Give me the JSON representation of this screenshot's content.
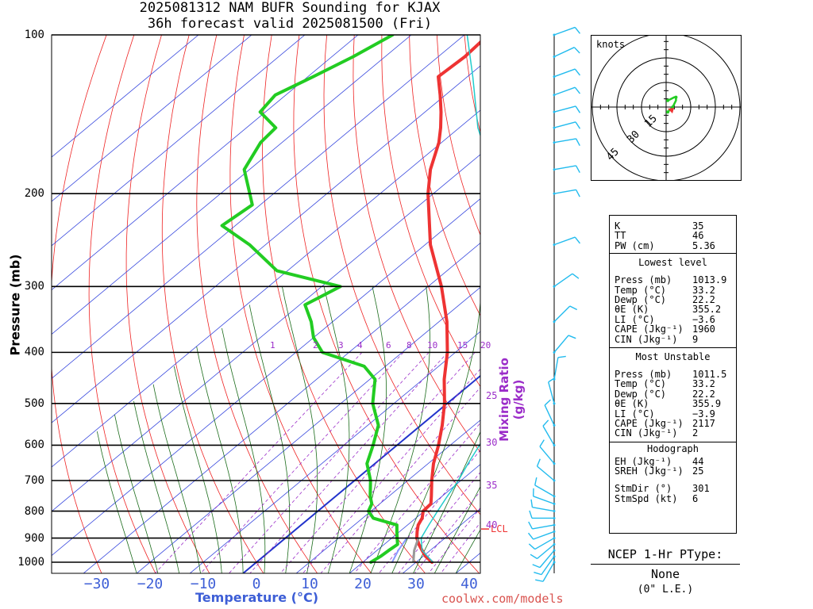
{
  "title": {
    "line1": "2025081312 NAM BUFR Sounding for KJAX",
    "line2": "36h forecast valid 2025081500 (Fri)"
  },
  "axes": {
    "ylabel": "Pressure (mb)",
    "xlabel": "Temperature (°C)",
    "mixing_ratio_label": "Mixing Ratio (g/kg)",
    "pressure_ticks": [
      "100",
      "200",
      "300",
      "400",
      "500",
      "600",
      "700",
      "800",
      "900",
      "1000"
    ],
    "temperature_ticks": [
      "−30",
      "−20",
      "−10",
      "0",
      "10",
      "20",
      "30",
      "40"
    ],
    "mixing_ratio_ticks": [
      "1",
      "2",
      "3",
      "4",
      "6",
      "8",
      "10",
      "15",
      "20"
    ],
    "mixing_ratio_side": [
      "25",
      "30",
      "35",
      "40"
    ],
    "lcl_label": "LCL"
  },
  "chart_data": {
    "type": "line",
    "title": "2025081312 NAM BUFR Sounding for KJAX",
    "xlabel": "Temperature (°C)",
    "ylabel": "Pressure (mb)",
    "x_range": [
      -38,
      42
    ],
    "y_range": [
      100,
      1050
    ],
    "y_scale": "log",
    "skew": "skew-T",
    "series": [
      {
        "name": "Temperature",
        "color": "#ee3333",
        "p": [
          1000,
          975,
          950,
          925,
          900,
          875,
          850,
          825,
          800,
          775,
          750,
          700,
          650,
          600,
          550,
          500,
          450,
          400,
          350,
          300,
          250,
          200,
          180,
          160,
          150,
          140,
          130,
          120,
          110,
          100
        ],
        "t": [
          33.0,
          30.5,
          28.5,
          26.5,
          24.7,
          23.3,
          22.0,
          21.2,
          19.8,
          19.6,
          18.0,
          14.5,
          11.0,
          7.8,
          4.0,
          -0.5,
          -6.0,
          -11.5,
          -18.5,
          -27.5,
          -39.0,
          -51.0,
          -56.0,
          -60.5,
          -63.5,
          -67.0,
          -71.0,
          -75.5,
          -75.0,
          -75.5
        ]
      },
      {
        "name": "Dewpoint",
        "color": "#22cc22",
        "p": [
          1000,
          975,
          950,
          925,
          900,
          875,
          850,
          825,
          800,
          775,
          750,
          700,
          650,
          600,
          550,
          500,
          450,
          425,
          400,
          375,
          350,
          325,
          300,
          280,
          250,
          230,
          210,
          200,
          180,
          160,
          150,
          140,
          130,
          120,
          110,
          100
        ],
        "t": [
          21.5,
          22.0,
          22.2,
          22.5,
          21.0,
          19.5,
          18.0,
          12.0,
          9.5,
          8.5,
          6.5,
          3.0,
          -1.5,
          -4.5,
          -8.0,
          -14.0,
          -19.0,
          -24.0,
          -35.0,
          -40.0,
          -44.0,
          -49.0,
          -46.5,
          -62.0,
          -73.0,
          -82.5,
          -81.5,
          -84.5,
          -91.0,
          -94.0,
          -94.5,
          -101.0,
          -102.0,
          -99.0,
          -96.0,
          -93.5
        ]
      },
      {
        "name": "Parcel",
        "color": "#22cccc",
        "p": [
          1000,
          950,
          900,
          850,
          800,
          750,
          700,
          650,
          600,
          550,
          500,
          450,
          400,
          350,
          300,
          250,
          200,
          150,
          120,
          100
        ],
        "t": [
          33.2,
          28.5,
          25.5,
          24.0,
          22.5,
          21.0,
          19.5,
          17.5,
          15.5,
          13.0,
          10.0,
          6.5,
          2.0,
          -4.0,
          -12.0,
          -22.5,
          -37.5,
          -56.5,
          -69.0,
          -79.5
        ]
      },
      {
        "name": "Wet-bulb",
        "color": "#8899ff",
        "p": [
          1000,
          950,
          900
        ],
        "t": [
          25.5,
          24.0,
          22.8
        ]
      }
    ],
    "annotations": [
      "LCL at about 865 mb"
    ],
    "wind_barbs": {
      "color": "#22bbee",
      "units": "knots",
      "p": [
        1000,
        975,
        950,
        925,
        900,
        875,
        850,
        825,
        800,
        775,
        750,
        700,
        650,
        600,
        550,
        500,
        450,
        400,
        350,
        300,
        250,
        200,
        180,
        160,
        150,
        140,
        130,
        120,
        110,
        100
      ],
      "dir": [
        210,
        215,
        220,
        230,
        240,
        250,
        260,
        270,
        280,
        290,
        300,
        310,
        320,
        330,
        335,
        345,
        10,
        40,
        45,
        55,
        70,
        80,
        80,
        80,
        75,
        75,
        70,
        70,
        65,
        70
      ],
      "spd": [
        10,
        10,
        10,
        10,
        10,
        10,
        10,
        10,
        10,
        10,
        10,
        10,
        10,
        10,
        10,
        10,
        10,
        10,
        10,
        10,
        10,
        10,
        10,
        10,
        10,
        10,
        10,
        10,
        10,
        10
      ]
    },
    "hodograph": {
      "units": "knots",
      "rings": [
        "15",
        "30",
        "45"
      ],
      "label": "knots",
      "u": [
        1,
        2,
        3,
        4,
        5,
        6,
        6,
        5,
        3,
        1
      ],
      "v": [
        -3,
        -2,
        -1,
        0,
        2,
        4,
        6,
        6,
        5,
        4
      ],
      "storm_motion_dir": 301,
      "storm_motion_spd": 6
    }
  },
  "stats": {
    "top": [
      {
        "k": "K",
        "v": "35"
      },
      {
        "k": "TT",
        "v": "46"
      },
      {
        "k": "PW (cm)",
        "v": "5.36"
      }
    ],
    "lowest_level": {
      "heading": "Lowest level",
      "rows": [
        {
          "k": "Press (mb)",
          "v": "1013.9"
        },
        {
          "k": "Temp (°C)",
          "v": "33.2"
        },
        {
          "k": "Dewp (°C)",
          "v": "22.2"
        },
        {
          "k": "θE (K)",
          "v": "355.2"
        },
        {
          "k": "LI (°C)",
          "v": "−3.6"
        },
        {
          "k": "CAPE (Jkg⁻¹)",
          "v": "1960"
        },
        {
          "k": "CIN (Jkg⁻¹)",
          "v": "9"
        }
      ]
    },
    "most_unstable": {
      "heading": "Most Unstable",
      "rows": [
        {
          "k": "Press (mb)",
          "v": "1011.5"
        },
        {
          "k": "Temp (°C)",
          "v": "33.2"
        },
        {
          "k": "Dewp (°C)",
          "v": "22.2"
        },
        {
          "k": "θE (K)",
          "v": "355.9"
        },
        {
          "k": "LI (°C)",
          "v": "−3.9"
        },
        {
          "k": "CAPE (Jkg⁻¹)",
          "v": "2117"
        },
        {
          "k": "CIN (Jkg⁻¹)",
          "v": "2"
        }
      ]
    },
    "hodograph": {
      "heading": "Hodograph",
      "rows": [
        {
          "k": "EH (Jkg⁻¹)",
          "v": "44"
        },
        {
          "k": "SREH (Jkg⁻¹)",
          "v": "25"
        },
        {
          "k": "StmDir (°)",
          "v": "301"
        },
        {
          "k": "StmSpd (kt)",
          "v": "6"
        }
      ]
    }
  },
  "ptype": {
    "heading": "NCEP 1-Hr PType:",
    "value": "None",
    "le": "(0\" L.E.)"
  },
  "credit": "coolwx.com/models"
}
